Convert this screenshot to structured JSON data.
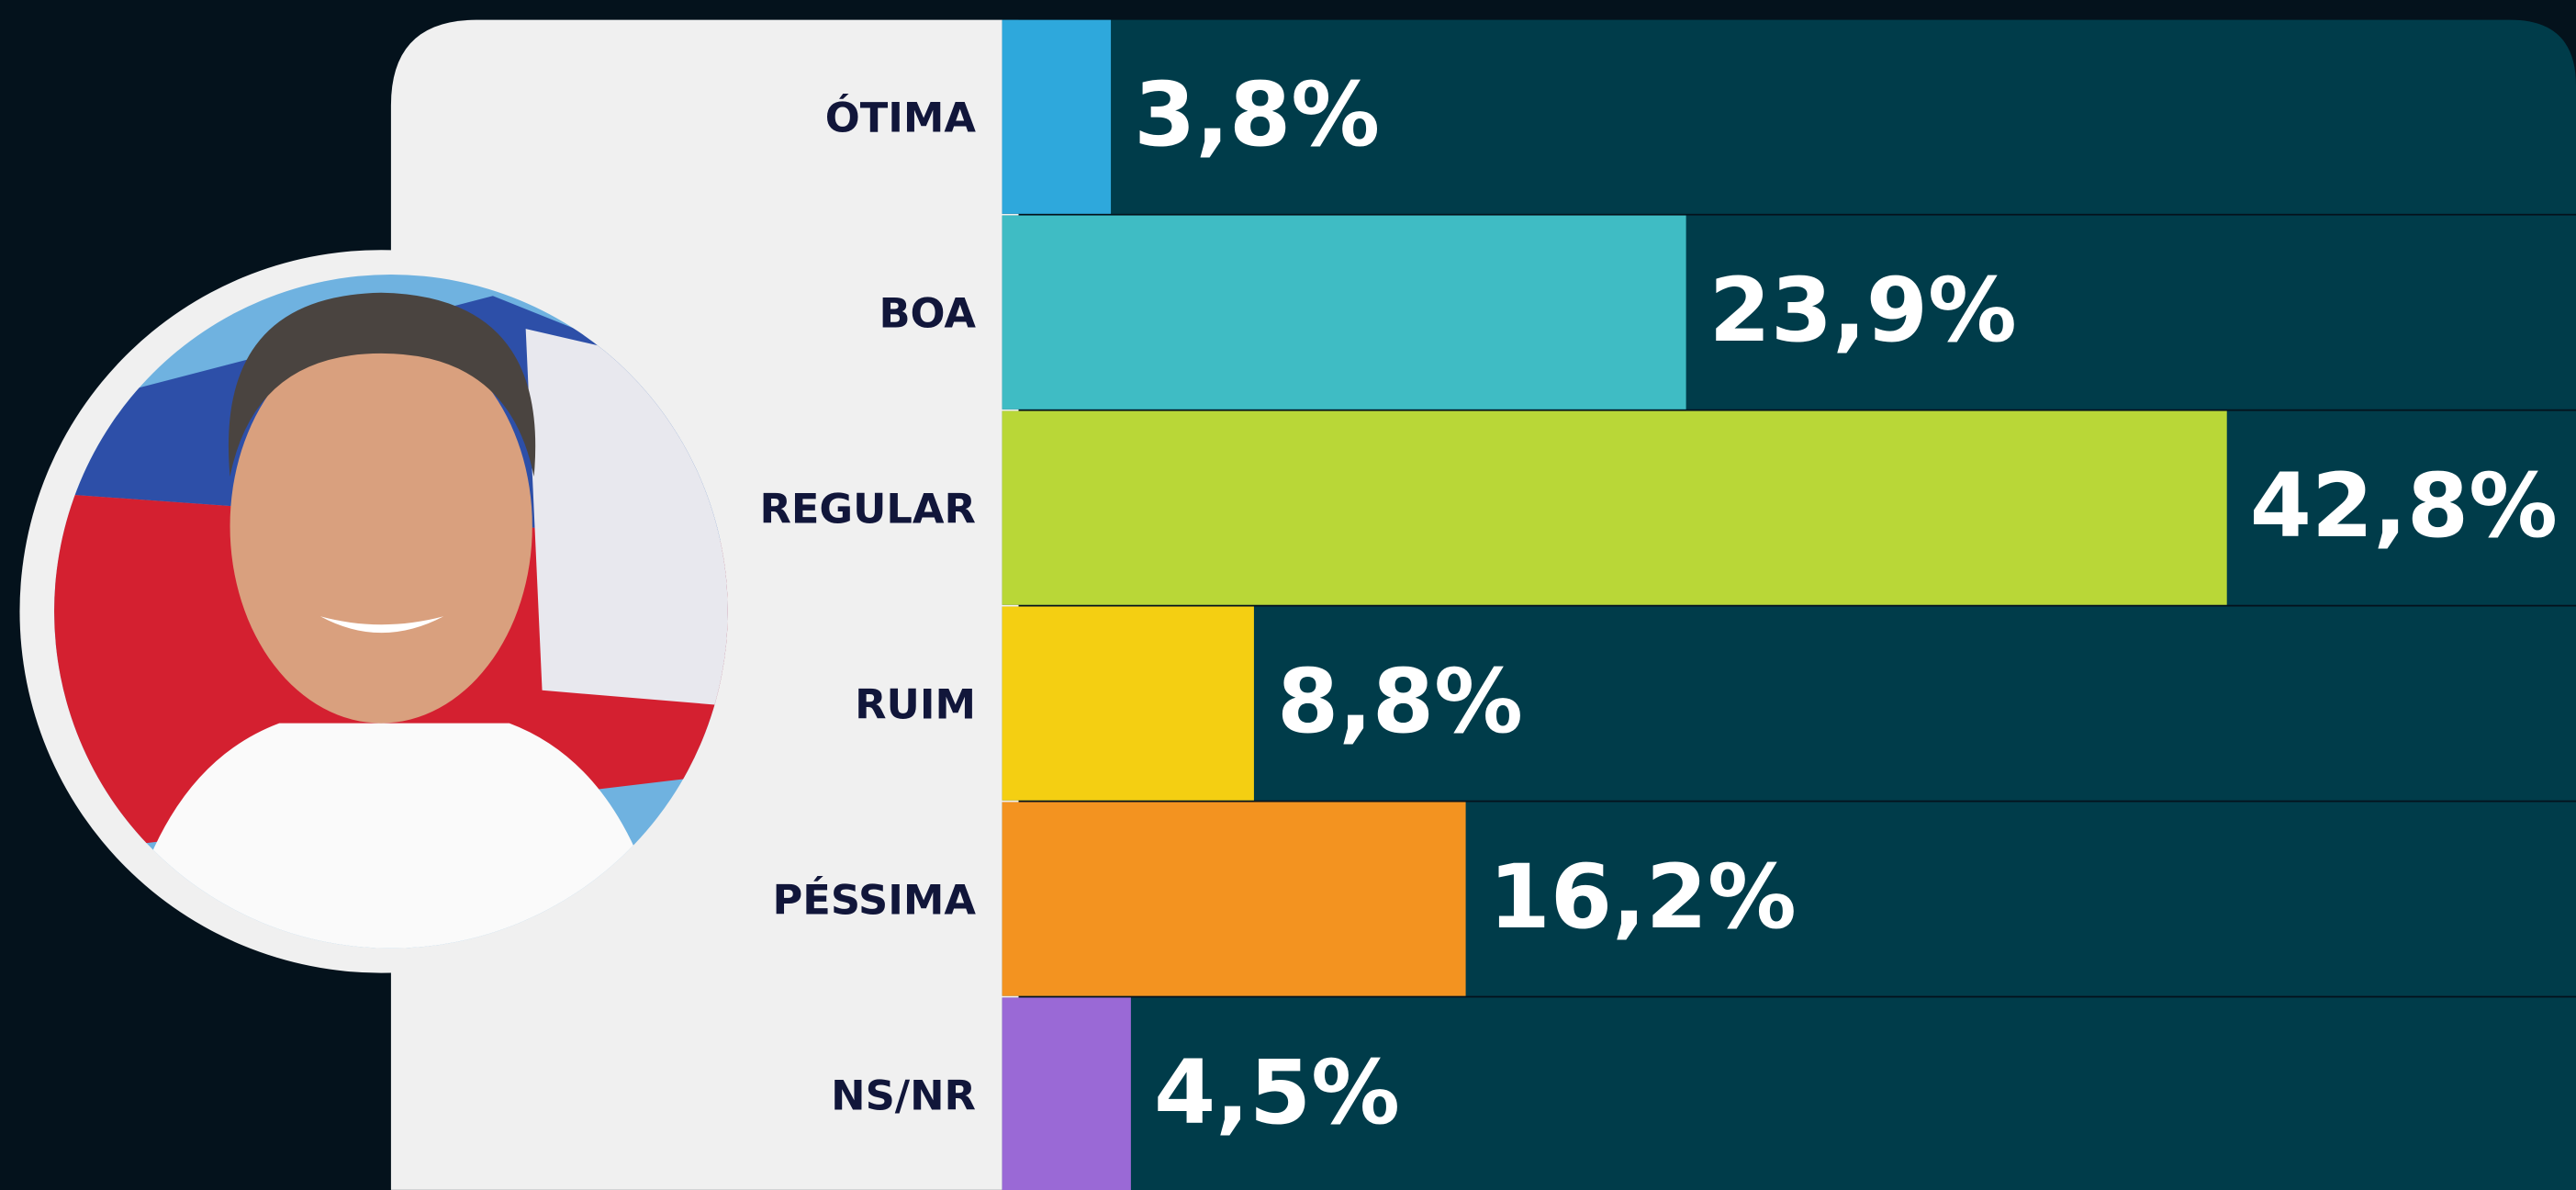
{
  "chart_data": {
    "type": "bar",
    "orientation": "horizontal",
    "categories": [
      "ÓTIMA",
      "BOA",
      "REGULAR",
      "RUIM",
      "PÉSSIMA",
      "NS/NR"
    ],
    "values": [
      3.8,
      23.9,
      42.8,
      8.8,
      16.2,
      4.5
    ],
    "value_labels": [
      "3,8%",
      "23,9%",
      "42,8%",
      "8,8%",
      "16,2%",
      "4,5%"
    ],
    "colors": [
      "#2ea8dc",
      "#3fbcc4",
      "#b9d737",
      "#f4cf12",
      "#f39320",
      "#9a69d6"
    ],
    "xlim": [
      0,
      55
    ]
  }
}
